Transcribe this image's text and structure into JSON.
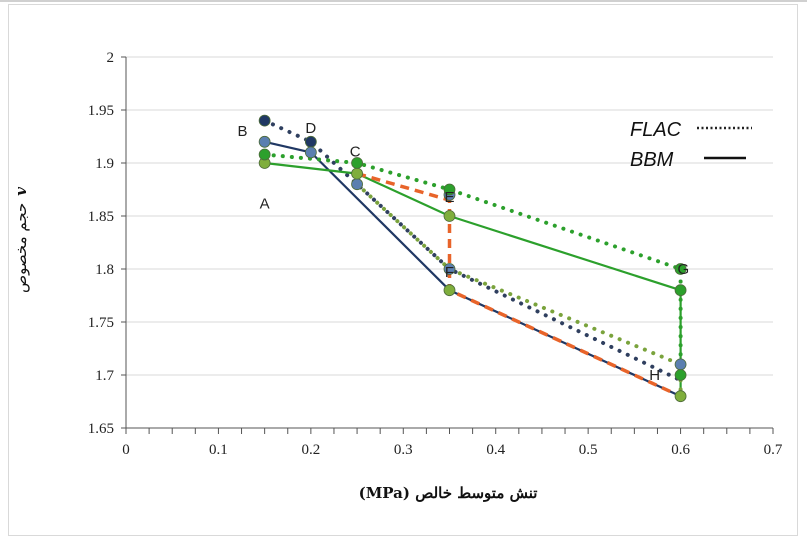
{
  "chart_data": {
    "type": "line",
    "xlabel": "تنش متوسط خالص (MPa)",
    "ylabel_text": "حجم مخصوص",
    "ylabel_symbol": "v",
    "xlim": [
      0,
      0.7
    ],
    "ylim": [
      1.65,
      2.0
    ],
    "x_ticks": [
      "0",
      "0.1",
      "0.2",
      "0.3",
      "0.4",
      "0.5",
      "0.6",
      "0.7"
    ],
    "y_ticks": [
      "1.65",
      "1.7",
      "1.75",
      "1.8",
      "1.85",
      "1.9",
      "1.95",
      "2"
    ],
    "grid": "horizontal",
    "legend": [
      {
        "label": "FLAC",
        "style": "dotted"
      },
      {
        "label": "BBM",
        "style": "solid"
      }
    ],
    "point_labels": [
      {
        "text": "A",
        "x": 0.15,
        "y": 1.862
      },
      {
        "text": "B",
        "x": 0.126,
        "y": 1.93
      },
      {
        "text": "D",
        "x": 0.2,
        "y": 1.933
      },
      {
        "text": "C",
        "x": 0.248,
        "y": 1.911
      },
      {
        "text": "E",
        "x": 0.35,
        "y": 1.868
      },
      {
        "text": "F",
        "x": 0.35,
        "y": 1.797
      },
      {
        "text": "G",
        "x": 0.603,
        "y": 1.8
      },
      {
        "text": "H",
        "x": 0.572,
        "y": 1.7
      }
    ],
    "series": [
      {
        "style": "solid",
        "color": "#203864",
        "x": [
          0.15,
          0.2,
          0.35,
          0.6
        ],
        "y": [
          1.92,
          1.91,
          1.78,
          1.68
        ]
      },
      {
        "style": "dotted",
        "color": "#2f3f5f",
        "x": [
          0.15,
          0.2,
          0.35,
          0.6
        ],
        "y": [
          1.94,
          1.92,
          1.8,
          1.695
        ]
      },
      {
        "style": "solid",
        "color": "#2ca02c",
        "x": [
          0.15,
          0.25,
          0.35,
          0.6,
          0.6
        ],
        "y": [
          1.9,
          1.89,
          1.85,
          1.78,
          1.68
        ]
      },
      {
        "style": "dotted",
        "color": "#2ca02c",
        "x": [
          0.15,
          0.25,
          0.35,
          0.6,
          0.6
        ],
        "y": [
          1.908,
          1.9,
          1.875,
          1.8,
          1.7
        ]
      },
      {
        "style": "dashed",
        "color": "#e8642a",
        "x": [
          0.25,
          0.35,
          0.35,
          0.6
        ],
        "y": [
          1.89,
          1.865,
          1.78,
          1.68
        ]
      },
      {
        "style": "dotted",
        "color": "#7aa33c",
        "x": [
          0.25,
          0.35,
          0.6,
          0.6
        ],
        "y": [
          1.88,
          1.8,
          1.71,
          1.68
        ]
      }
    ],
    "markers": [
      {
        "color": "#203864",
        "x": [
          0.15,
          0.2
        ],
        "y": [
          1.94,
          1.92
        ]
      },
      {
        "color": "#5b7fb0",
        "x": [
          0.15,
          0.2,
          0.25,
          0.35,
          0.35,
          0.6
        ],
        "y": [
          1.92,
          1.91,
          1.88,
          1.87,
          1.8,
          1.71
        ]
      },
      {
        "color": "#7fae3c",
        "x": [
          0.15,
          0.25,
          0.35,
          0.35,
          0.6
        ],
        "y": [
          1.9,
          1.89,
          1.85,
          1.78,
          1.68
        ]
      },
      {
        "color": "#2ca02c",
        "x": [
          0.15,
          0.25,
          0.35,
          0.6,
          0.6,
          0.6
        ],
        "y": [
          1.908,
          1.9,
          1.875,
          1.8,
          1.78,
          1.7
        ]
      }
    ]
  }
}
